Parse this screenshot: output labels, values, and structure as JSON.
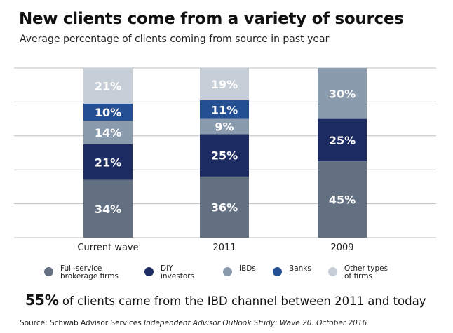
{
  "title": "New clients come from a variety of sources",
  "subtitle": "Average percentage of clients coming from source in past year",
  "chart_data": {
    "type": "bar",
    "stacked": true,
    "title": "New clients come from a variety of sources",
    "subtitle": "Average percentage of clients coming from source in past year",
    "categories": [
      "Current wave",
      "2011",
      "2009"
    ],
    "ylim": [
      0,
      100
    ],
    "grid": true,
    "series": [
      {
        "name": "Full-service\nbrokerage firms",
        "color": "#637082",
        "values": [
          34,
          36,
          45
        ],
        "labels": [
          "34%",
          "36%",
          "45%"
        ]
      },
      {
        "name": "DIY\ninvestors",
        "color": "#1c2b61",
        "values": [
          21,
          25,
          25
        ],
        "labels": [
          "21%",
          "25%",
          "25%"
        ]
      },
      {
        "name": "IBDs",
        "color": "#8b9bae",
        "values": [
          14,
          9,
          30
        ],
        "labels": [
          "14%",
          "9%",
          "30%"
        ]
      },
      {
        "name": "Banks",
        "color": "#254f93",
        "values": [
          10,
          11,
          0
        ],
        "labels": [
          "10%",
          "11%",
          ""
        ]
      },
      {
        "name": "Other types\nof firms",
        "color": "#c6ced8",
        "values": [
          21,
          19,
          0
        ],
        "labels": [
          "21%",
          "19%",
          ""
        ]
      }
    ]
  },
  "headline": {
    "big": "55%",
    "text": "of clients came from the IBD channel between 2011 and today"
  },
  "source": {
    "prefix": "Source: Schwab Advisor Services ",
    "italic": "Independent Advisor Outlook Study: Wave 20. October 2016"
  }
}
